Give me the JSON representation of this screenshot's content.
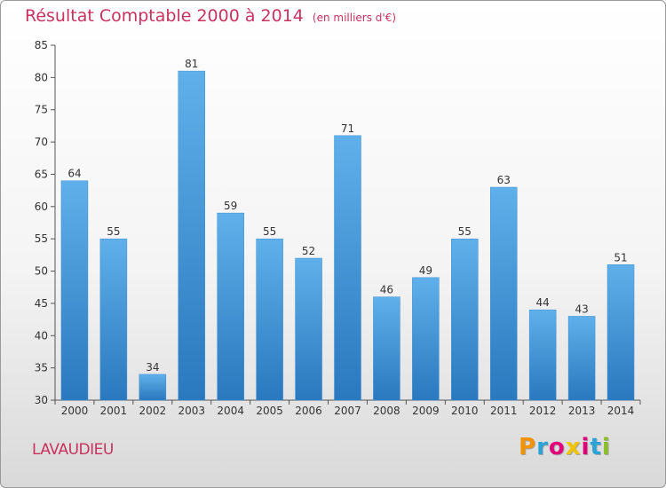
{
  "title": {
    "main": "Résultat Comptable 2000 à 2014",
    "unit": "(en milliers d'€)"
  },
  "town": "LAVAUDIEU",
  "logo": {
    "text": "Proxiti",
    "letters": [
      "P",
      "r",
      "o",
      "x",
      "i",
      "t",
      "i"
    ],
    "colors": [
      "#f39200",
      "#2aa3d8",
      "#e2007a",
      "#f0c400",
      "#e2007a",
      "#2aa3d8",
      "#8cbf26"
    ]
  },
  "chart_data": {
    "type": "bar",
    "categories": [
      "2000",
      "2001",
      "2002",
      "2003",
      "2004",
      "2005",
      "2006",
      "2007",
      "2008",
      "2009",
      "2010",
      "2011",
      "2012",
      "2013",
      "2014"
    ],
    "values": [
      64,
      55,
      34,
      81,
      59,
      55,
      52,
      71,
      46,
      49,
      55,
      63,
      44,
      43,
      51
    ],
    "ylim": [
      30,
      85
    ],
    "yticks": [
      30,
      35,
      40,
      45,
      50,
      55,
      60,
      65,
      70,
      75,
      80,
      85
    ],
    "grid": false,
    "bar_color_top": "#5fb0ea",
    "bar_color_bottom": "#2a78be",
    "title": "Résultat Comptable 2000 à 2014",
    "xlabel": "",
    "ylabel": ""
  }
}
